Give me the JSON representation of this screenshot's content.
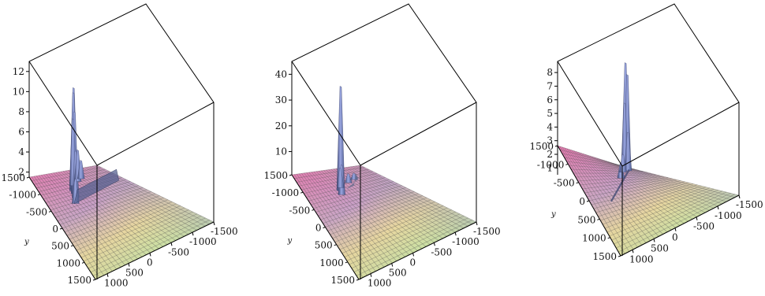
{
  "plots": [
    {
      "z_ticks": [
        "2",
        "4",
        "6",
        "8",
        "10",
        "12"
      ],
      "z_tick_values": [
        2,
        4,
        6,
        8,
        10,
        12
      ],
      "z_range": [
        1.5,
        13
      ],
      "y_axis_label": "y",
      "y_ticks": [
        "1500",
        "-1000",
        "-500",
        "0",
        "500",
        "1000",
        "1500"
      ],
      "x_ticks": [
        "-1500",
        "-1000",
        "-500",
        "0",
        "500",
        "1000"
      ],
      "peaks": [
        {
          "u": 0.4,
          "v": 0.2,
          "h": 11.6
        },
        {
          "u": 0.42,
          "v": 0.18,
          "h": 10.9
        },
        {
          "u": 0.38,
          "v": 0.23,
          "h": 9.5
        },
        {
          "u": 0.45,
          "v": 0.15,
          "h": 8.0
        },
        {
          "u": 0.35,
          "v": 0.27,
          "h": 6.0
        },
        {
          "u": 0.55,
          "v": 0.12,
          "h": 4.5
        },
        {
          "u": 0.3,
          "v": 0.32,
          "h": 3.8
        },
        {
          "u": 0.62,
          "v": 0.1,
          "h": 3.2
        }
      ]
    },
    {
      "z_ticks": [
        "10",
        "20",
        "30",
        "40"
      ],
      "z_tick_values": [
        10,
        20,
        30,
        40
      ],
      "z_range": [
        1,
        45
      ],
      "y_axis_label": "y",
      "y_ticks": [
        "1500",
        "-1000",
        "-500",
        "0",
        "500",
        "1000",
        "1500"
      ],
      "x_ticks": [
        "-1500",
        "-1000",
        "-500",
        "0",
        "500",
        "1000"
      ],
      "peaks": [
        {
          "u": 0.43,
          "v": 0.22,
          "h": 41
        },
        {
          "u": 0.4,
          "v": 0.26,
          "h": 12
        },
        {
          "u": 0.46,
          "v": 0.19,
          "h": 8
        },
        {
          "u": 0.6,
          "v": 0.16,
          "h": 4
        },
        {
          "u": 0.7,
          "v": 0.14,
          "h": 3
        }
      ]
    },
    {
      "z_ticks": [
        "1",
        "2",
        "3",
        "4",
        "5",
        "6",
        "7",
        "8"
      ],
      "z_tick_values": [
        1,
        2,
        3,
        4,
        5,
        6,
        7,
        8
      ],
      "z_range": [
        0.5,
        8.7
      ],
      "y_axis_label": "y",
      "y_ticks": [
        "1500",
        "-1000",
        "-500",
        "0",
        "500",
        "1000",
        "1500"
      ],
      "x_ticks": [
        "-1500",
        "-1000",
        "-500",
        "0",
        "500",
        "1000"
      ],
      "peaks": [
        {
          "u": 0.88,
          "v": 0.1,
          "h": 8.2
        },
        {
          "u": 0.86,
          "v": 0.13,
          "h": 7.4
        },
        {
          "u": 0.9,
          "v": 0.08,
          "h": 5.2
        },
        {
          "u": 0.84,
          "v": 0.15,
          "h": 3.2
        },
        {
          "u": 0.55,
          "v": 0.3,
          "h": 1.5
        },
        {
          "u": 0.7,
          "v": 0.2,
          "h": 1.7
        }
      ]
    }
  ]
}
